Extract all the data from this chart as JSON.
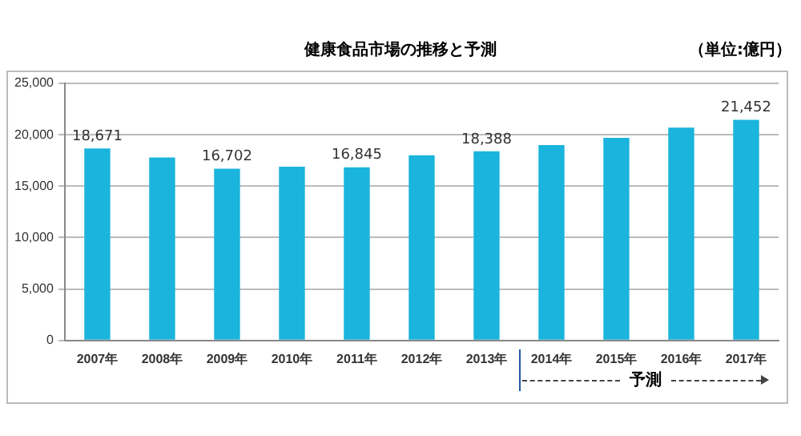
{
  "chart_data": {
    "type": "bar",
    "title": "健康食品市場の推移と予測",
    "subtitle": "（単位:億円）",
    "categories": [
      "2007年",
      "2008年",
      "2009年",
      "2010年",
      "2011年",
      "2012年",
      "2013年",
      "2014年",
      "2015年",
      "2016年",
      "2017年"
    ],
    "series": [
      {
        "color": "#1ab4dc",
        "values": [
          18671,
          17800,
          16702,
          16900,
          16845,
          18000,
          18388,
          19000,
          19700,
          20700,
          21452
        ],
        "value_labels": [
          "18,671",
          null,
          "16,702",
          null,
          "16,845",
          null,
          "18,388",
          null,
          null,
          null,
          "21,452"
        ]
      }
    ],
    "ylim": [
      0,
      25000
    ],
    "yticks": [
      {
        "value": 0,
        "label": "0"
      },
      {
        "value": 5000,
        "label": "5,000"
      },
      {
        "value": 10000,
        "label": "10,000"
      },
      {
        "value": 15000,
        "label": "15,000"
      },
      {
        "value": 20000,
        "label": "20,000"
      },
      {
        "value": 25000,
        "label": "25,000"
      }
    ],
    "grid": "y",
    "legend": false,
    "annotations": [
      "予測"
    ]
  }
}
